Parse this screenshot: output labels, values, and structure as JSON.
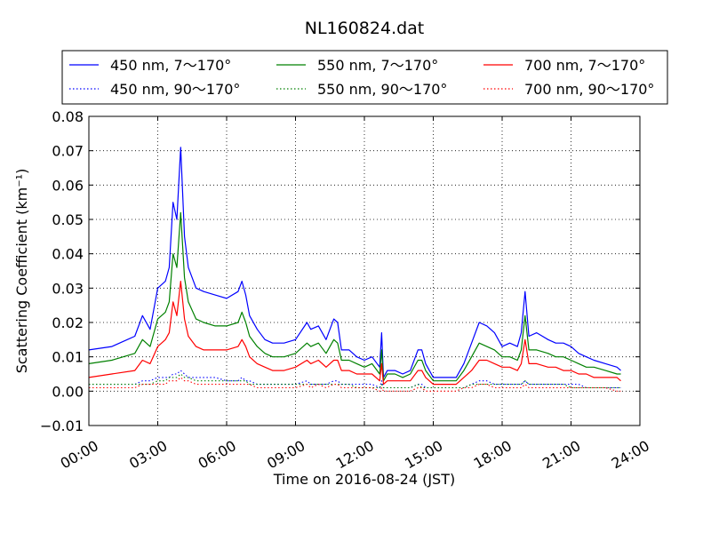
{
  "chart_data": {
    "type": "line",
    "title": "NL160824.dat",
    "xlabel": "Time on 2016-08-24 (JST)",
    "ylabel": "Scattering Coefficient (km⁻¹)",
    "xlim": [
      "00:00",
      "24:00"
    ],
    "ylim": [
      -0.01,
      0.08
    ],
    "x_ticks": [
      "00:00",
      "03:00",
      "06:00",
      "09:00",
      "12:00",
      "15:00",
      "18:00",
      "21:00",
      "24:00"
    ],
    "y_ticks": [
      "−0.01",
      "0.00",
      "0.01",
      "0.02",
      "0.03",
      "0.04",
      "0.05",
      "0.06",
      "0.07",
      "0.08"
    ],
    "grid": true,
    "legend": "top, outside plot, 3 columns",
    "x": [
      "00:00",
      "01:00",
      "02:00",
      "02:20",
      "02:40",
      "03:00",
      "03:20",
      "03:30",
      "03:40",
      "03:50",
      "04:00",
      "04:10",
      "04:20",
      "04:40",
      "05:00",
      "05:30",
      "06:00",
      "06:30",
      "06:40",
      "06:50",
      "07:00",
      "07:20",
      "07:40",
      "08:00",
      "08:30",
      "09:00",
      "09:30",
      "09:40",
      "10:00",
      "10:20",
      "10:40",
      "10:50",
      "11:00",
      "11:20",
      "11:40",
      "12:00",
      "12:20",
      "12:40",
      "12:45",
      "12:50",
      "13:00",
      "13:20",
      "13:40",
      "14:00",
      "14:20",
      "14:30",
      "14:40",
      "15:00",
      "15:30",
      "16:00",
      "16:20",
      "16:40",
      "17:00",
      "17:20",
      "17:40",
      "18:00",
      "18:20",
      "18:40",
      "18:50",
      "19:00",
      "19:10",
      "19:30",
      "20:00",
      "20:20",
      "20:40",
      "21:00",
      "21:20",
      "21:40",
      "22:00",
      "22:30",
      "23:00",
      "23:10"
    ],
    "series": [
      {
        "name": "450 nm, 7～170°",
        "color": "#0000ff",
        "style": "solid",
        "values": [
          0.012,
          0.013,
          0.016,
          0.022,
          0.018,
          0.03,
          0.032,
          0.036,
          0.055,
          0.05,
          0.071,
          0.045,
          0.036,
          0.03,
          0.029,
          0.028,
          0.027,
          0.029,
          0.032,
          0.028,
          0.022,
          0.018,
          0.015,
          0.014,
          0.014,
          0.015,
          0.02,
          0.018,
          0.019,
          0.015,
          0.021,
          0.02,
          0.012,
          0.012,
          0.01,
          0.009,
          0.01,
          0.007,
          0.017,
          0.004,
          0.006,
          0.006,
          0.005,
          0.006,
          0.012,
          0.012,
          0.008,
          0.004,
          0.004,
          0.004,
          0.008,
          0.014,
          0.02,
          0.019,
          0.017,
          0.013,
          0.014,
          0.013,
          0.017,
          0.029,
          0.016,
          0.017,
          0.015,
          0.014,
          0.014,
          0.013,
          0.011,
          0.01,
          0.009,
          0.008,
          0.007,
          0.006
        ]
      },
      {
        "name": "550 nm, 7～170°",
        "color": "#008000",
        "style": "solid",
        "values": [
          0.008,
          0.009,
          0.011,
          0.015,
          0.013,
          0.021,
          0.023,
          0.026,
          0.04,
          0.036,
          0.052,
          0.033,
          0.026,
          0.021,
          0.02,
          0.019,
          0.019,
          0.02,
          0.023,
          0.02,
          0.016,
          0.013,
          0.011,
          0.01,
          0.01,
          0.011,
          0.014,
          0.013,
          0.014,
          0.011,
          0.015,
          0.014,
          0.009,
          0.009,
          0.008,
          0.007,
          0.008,
          0.005,
          0.012,
          0.003,
          0.005,
          0.005,
          0.004,
          0.005,
          0.009,
          0.009,
          0.006,
          0.003,
          0.003,
          0.003,
          0.006,
          0.01,
          0.014,
          0.013,
          0.012,
          0.01,
          0.01,
          0.009,
          0.012,
          0.022,
          0.012,
          0.012,
          0.011,
          0.01,
          0.01,
          0.009,
          0.008,
          0.007,
          0.007,
          0.006,
          0.005,
          0.005
        ]
      },
      {
        "name": "700 nm, 7～170°",
        "color": "#ff0000",
        "style": "solid",
        "values": [
          0.004,
          0.005,
          0.006,
          0.009,
          0.008,
          0.013,
          0.015,
          0.017,
          0.026,
          0.022,
          0.032,
          0.021,
          0.016,
          0.013,
          0.012,
          0.012,
          0.012,
          0.013,
          0.015,
          0.013,
          0.01,
          0.008,
          0.007,
          0.006,
          0.006,
          0.007,
          0.009,
          0.008,
          0.009,
          0.007,
          0.009,
          0.009,
          0.006,
          0.006,
          0.005,
          0.005,
          0.005,
          0.003,
          0.008,
          0.002,
          0.003,
          0.003,
          0.003,
          0.003,
          0.006,
          0.006,
          0.004,
          0.002,
          0.002,
          0.002,
          0.004,
          0.006,
          0.009,
          0.009,
          0.008,
          0.007,
          0.007,
          0.006,
          0.008,
          0.015,
          0.008,
          0.008,
          0.007,
          0.007,
          0.006,
          0.006,
          0.005,
          0.005,
          0.004,
          0.004,
          0.004,
          0.003
        ]
      },
      {
        "name": "450 nm, 90～170°",
        "color": "#0000ff",
        "style": "dotted",
        "values": [
          0.002,
          0.002,
          0.002,
          0.003,
          0.003,
          0.004,
          0.004,
          0.004,
          0.005,
          0.005,
          0.006,
          0.005,
          0.004,
          0.004,
          0.004,
          0.004,
          0.003,
          0.003,
          0.004,
          0.003,
          0.003,
          0.002,
          0.002,
          0.002,
          0.002,
          0.002,
          0.003,
          0.002,
          0.002,
          0.002,
          0.003,
          0.003,
          0.002,
          0.002,
          0.002,
          0.002,
          0.002,
          0.001,
          0.003,
          0.001,
          0.001,
          0.001,
          0.001,
          0.001,
          0.002,
          0.002,
          0.001,
          0.001,
          0.001,
          0.001,
          0.001,
          0.002,
          0.003,
          0.003,
          0.002,
          0.002,
          0.002,
          0.002,
          0.002,
          0.003,
          0.002,
          0.002,
          0.002,
          0.002,
          0.002,
          0.002,
          0.002,
          0.001,
          0.001,
          0.001,
          0.001,
          0.001
        ]
      },
      {
        "name": "550 nm, 90～170°",
        "color": "#008000",
        "style": "dotted",
        "values": [
          0.002,
          0.002,
          0.002,
          0.002,
          0.002,
          0.003,
          0.003,
          0.004,
          0.004,
          0.004,
          0.005,
          0.004,
          0.004,
          0.003,
          0.003,
          0.003,
          0.003,
          0.003,
          0.003,
          0.003,
          0.002,
          0.002,
          0.002,
          0.002,
          0.002,
          0.002,
          0.002,
          0.002,
          0.002,
          0.002,
          0.002,
          0.002,
          0.002,
          0.002,
          0.001,
          0.001,
          0.001,
          0.001,
          0.002,
          0.001,
          0.001,
          0.001,
          0.001,
          0.001,
          0.002,
          0.001,
          0.001,
          0.001,
          0.001,
          0.001,
          0.001,
          0.002,
          0.002,
          0.002,
          0.002,
          0.002,
          0.002,
          0.002,
          0.002,
          0.003,
          0.002,
          0.002,
          0.002,
          0.002,
          0.002,
          0.001,
          0.001,
          0.001,
          0.001,
          0.001,
          0.001,
          0.001
        ]
      },
      {
        "name": "700 nm, 90～170°",
        "color": "#ff0000",
        "style": "dotted",
        "values": [
          0.001,
          0.001,
          0.001,
          0.002,
          0.002,
          0.002,
          0.002,
          0.003,
          0.003,
          0.003,
          0.004,
          0.003,
          0.003,
          0.002,
          0.002,
          0.002,
          0.002,
          0.002,
          0.002,
          0.002,
          0.002,
          0.001,
          0.001,
          0.001,
          0.001,
          0.001,
          0.002,
          0.001,
          0.002,
          0.001,
          0.002,
          0.002,
          0.001,
          0.001,
          0.001,
          0.001,
          0.001,
          0.0,
          0.001,
          0.0,
          0.0,
          0.0,
          0.0,
          0.0,
          0.001,
          0.001,
          0.0,
          0.0,
          0.0,
          0.0,
          0.001,
          0.001,
          0.002,
          0.002,
          0.001,
          0.001,
          0.001,
          0.001,
          0.001,
          0.002,
          0.001,
          0.001,
          0.001,
          0.001,
          0.001,
          0.001,
          0.001,
          0.001,
          0.001,
          0.001,
          0.0,
          0.0
        ]
      }
    ]
  }
}
